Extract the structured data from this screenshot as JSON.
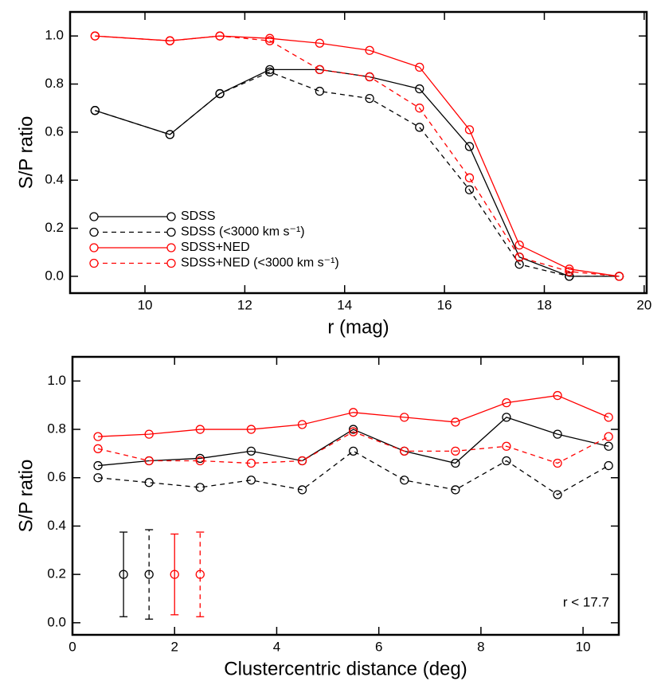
{
  "chart_data": [
    {
      "type": "line",
      "xlabel": "r (mag)",
      "ylabel": "S/P ratio",
      "x": [
        9,
        10.5,
        11.5,
        12.5,
        13.5,
        14.5,
        15.5,
        16.5,
        17.5,
        18.5,
        19.5
      ],
      "series": [
        {
          "name": "SDSS",
          "color": "#000000",
          "style": "solid",
          "values": [
            0.69,
            0.59,
            0.76,
            0.86,
            0.86,
            0.83,
            0.78,
            0.54,
            0.08,
            0.0,
            0.0
          ]
        },
        {
          "name": "SDSS (<3000 km s⁻¹)",
          "color": "#000000",
          "style": "dashed",
          "values": [
            0.69,
            0.59,
            0.76,
            0.85,
            0.77,
            0.74,
            0.62,
            0.36,
            0.05,
            0.0,
            0.0
          ]
        },
        {
          "name": "SDSS+NED",
          "color": "#ff0000",
          "style": "solid",
          "values": [
            1.0,
            0.98,
            1.0,
            0.99,
            0.97,
            0.94,
            0.87,
            0.61,
            0.13,
            0.03,
            0.0
          ]
        },
        {
          "name": "SDSS+NED (<3000 km s⁻¹)",
          "color": "#ff0000",
          "style": "dashed",
          "values": [
            1.0,
            0.98,
            1.0,
            0.98,
            0.86,
            0.83,
            0.7,
            0.41,
            0.08,
            0.02,
            0.0
          ]
        }
      ],
      "xlim": [
        8.5,
        20.05
      ],
      "ylim": [
        -0.07,
        1.1
      ],
      "xticks": [
        10,
        12,
        14,
        16,
        18,
        20
      ],
      "yticks": [
        {
          "value": 0,
          "label": "0.0"
        },
        {
          "value": 0.2,
          "label": "0.2"
        },
        {
          "value": 0.4,
          "label": "0.4"
        },
        {
          "value": 0.6,
          "label": "0.6"
        },
        {
          "value": 0.8,
          "label": "0.8"
        },
        {
          "value": 1,
          "label": "1.0"
        }
      ],
      "legend": "lower left"
    },
    {
      "type": "line",
      "xlabel": "Clustercentric distance (deg)",
      "ylabel": "S/P ratio",
      "annotation": "r < 17.7",
      "x": [
        0.5,
        1.5,
        2.5,
        3.5,
        4.5,
        5.5,
        6.5,
        7.5,
        8.5,
        9.5,
        10.5
      ],
      "series": [
        {
          "color": "#000000",
          "style": "solid",
          "values": [
            0.65,
            0.67,
            0.68,
            0.71,
            0.67,
            0.8,
            0.71,
            0.66,
            0.85,
            0.78,
            0.73
          ]
        },
        {
          "color": "#000000",
          "style": "dashed",
          "values": [
            0.6,
            0.58,
            0.56,
            0.59,
            0.55,
            0.71,
            0.59,
            0.55,
            0.67,
            0.53,
            0.65
          ]
        },
        {
          "color": "#ff0000",
          "style": "solid",
          "values": [
            0.77,
            0.78,
            0.8,
            0.8,
            0.82,
            0.87,
            0.85,
            0.83,
            0.91,
            0.94,
            0.85
          ]
        },
        {
          "color": "#ff0000",
          "style": "dashed",
          "values": [
            0.72,
            0.67,
            0.67,
            0.66,
            0.67,
            0.79,
            0.71,
            0.71,
            0.73,
            0.66,
            0.77
          ]
        }
      ],
      "error_bars": [
        {
          "x": 1,
          "y": 0.2,
          "error": 0.175,
          "color": "#000000",
          "style": "solid"
        },
        {
          "x": 1.5,
          "y": 0.2,
          "error": 0.185,
          "color": "#000000",
          "style": "dashed"
        },
        {
          "x": 2,
          "y": 0.2,
          "error": 0.167,
          "color": "#ff0000",
          "style": "solid"
        },
        {
          "x": 2.5,
          "y": 0.2,
          "error": 0.175,
          "color": "#ff0000",
          "style": "dashed"
        }
      ],
      "xlim": [
        0,
        10.7
      ],
      "ylim": [
        -0.05,
        1.1
      ],
      "xticks": [
        0,
        2,
        4,
        6,
        8,
        10
      ],
      "yticks": [
        {
          "value": 0,
          "label": "0.0"
        },
        {
          "value": 0.2,
          "label": "0.2"
        },
        {
          "value": 0.4,
          "label": "0.4"
        },
        {
          "value": 0.6,
          "label": "0.6"
        },
        {
          "value": 0.8,
          "label": "0.8"
        },
        {
          "value": 1,
          "label": "1.0"
        }
      ]
    }
  ]
}
